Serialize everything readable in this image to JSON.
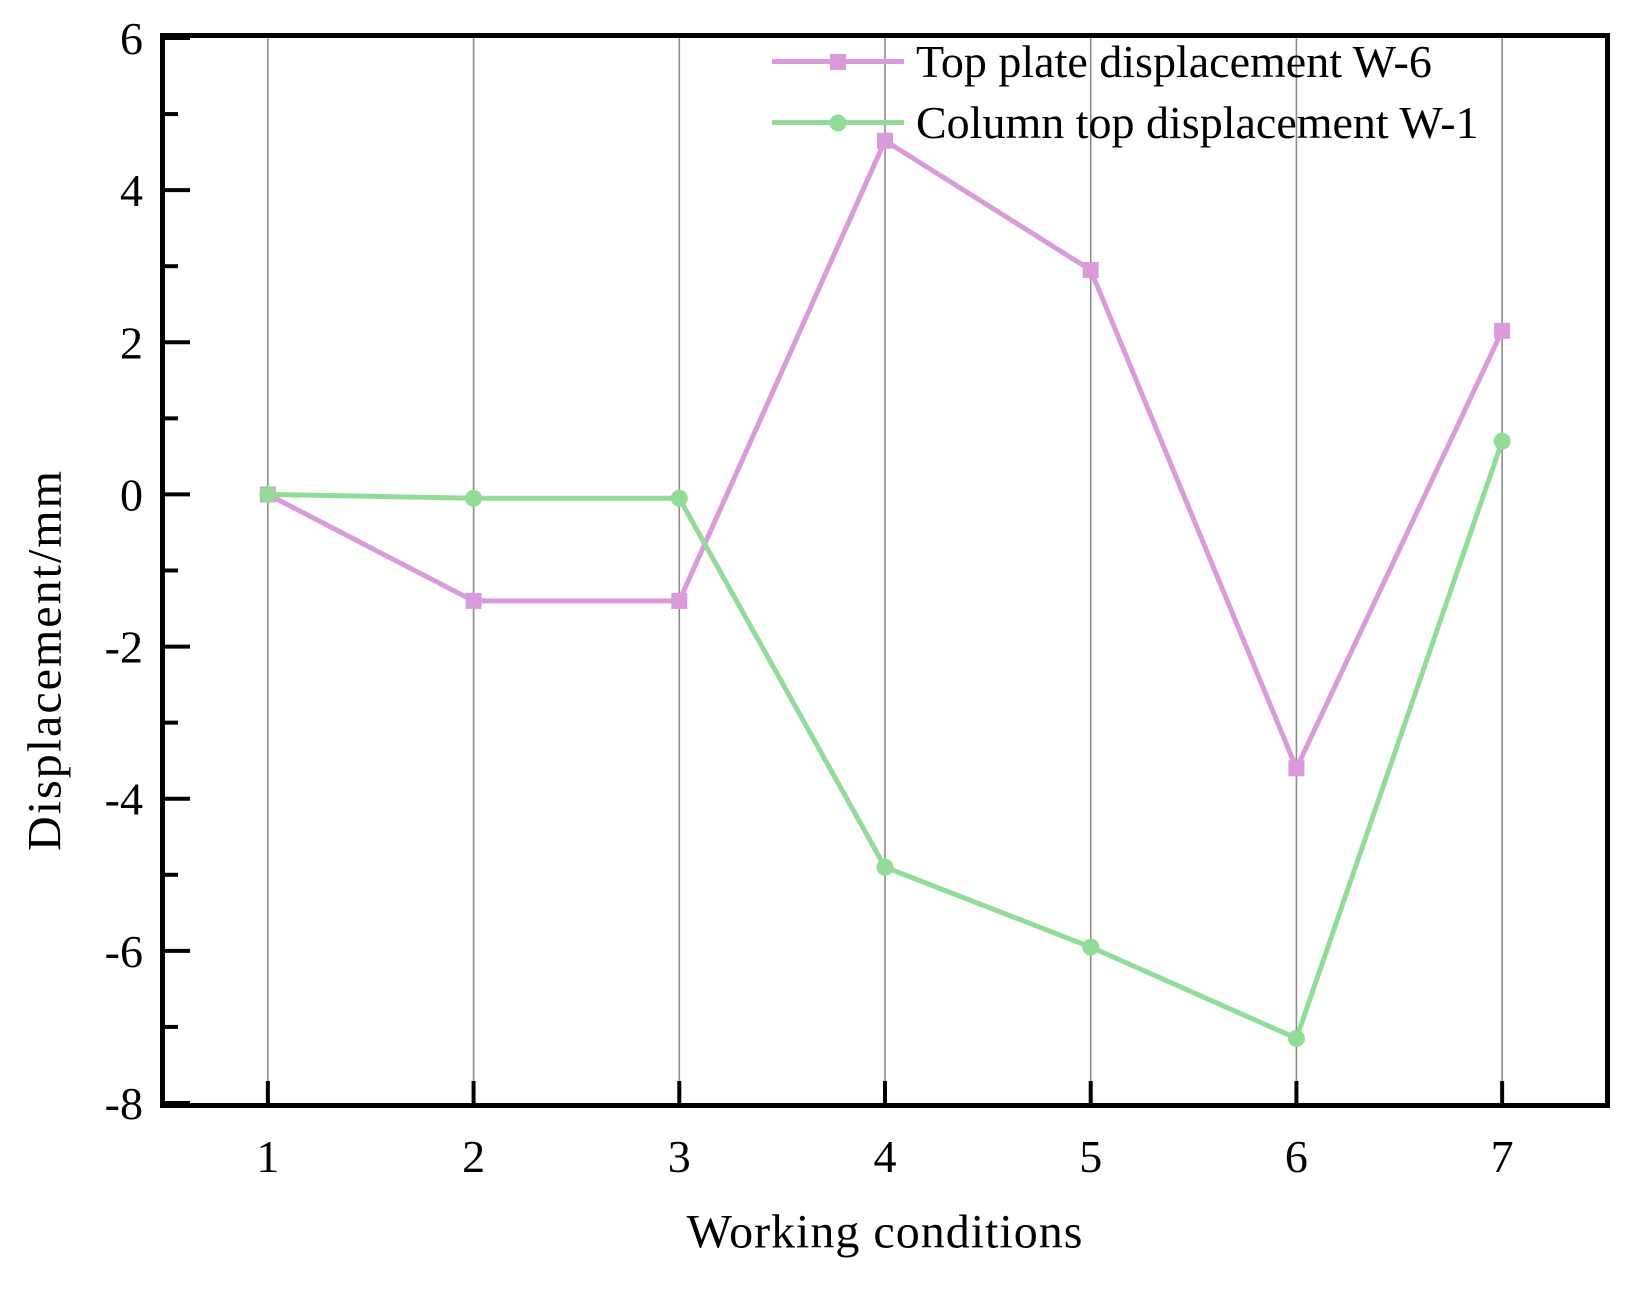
{
  "figure": {
    "background": "#ffffff",
    "text_color": "#000000"
  },
  "chart_data": {
    "type": "line",
    "title": "",
    "xlabel": "Working conditions",
    "ylabel": "Displacement/mm",
    "x": [
      1,
      2,
      3,
      4,
      5,
      6,
      7
    ],
    "series": [
      {
        "name": "Top plate displacement W-6",
        "color": "#D99BDB",
        "marker": "square",
        "values": [
          0,
          -1.4,
          -1.4,
          4.65,
          2.95,
          -3.6,
          2.15
        ]
      },
      {
        "name": "Column top displacement W-1",
        "color": "#93DC98",
        "marker": "circle",
        "values": [
          0,
          -0.05,
          -0.05,
          -4.9,
          -5.95,
          -7.15,
          0.7
        ]
      }
    ],
    "xlim": [
      0.5,
      7.5
    ],
    "ylim": [
      -8,
      6
    ],
    "xticks": [
      1,
      2,
      3,
      4,
      5,
      6,
      7
    ],
    "yticks_major": [
      6,
      4,
      2,
      0,
      -2,
      -4,
      -6,
      -8
    ],
    "yticks_minor": [
      5,
      3,
      1,
      -1,
      -3,
      -5,
      -7
    ],
    "grid": "vertical-only",
    "gridline_color": "#8C8C8C",
    "axis_color": "#000000",
    "legend_position": "top-center-inside"
  }
}
